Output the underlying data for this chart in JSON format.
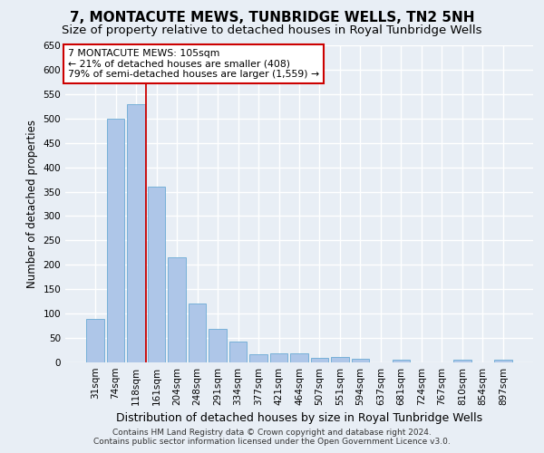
{
  "title": "7, MONTACUTE MEWS, TUNBRIDGE WELLS, TN2 5NH",
  "subtitle": "Size of property relative to detached houses in Royal Tunbridge Wells",
  "xlabel": "Distribution of detached houses by size in Royal Tunbridge Wells",
  "ylabel": "Number of detached properties",
  "footnote1": "Contains HM Land Registry data © Crown copyright and database right 2024.",
  "footnote2": "Contains public sector information licensed under the Open Government Licence v3.0.",
  "categories": [
    "31sqm",
    "74sqm",
    "118sqm",
    "161sqm",
    "204sqm",
    "248sqm",
    "291sqm",
    "334sqm",
    "377sqm",
    "421sqm",
    "464sqm",
    "507sqm",
    "551sqm",
    "594sqm",
    "637sqm",
    "681sqm",
    "724sqm",
    "767sqm",
    "810sqm",
    "854sqm",
    "897sqm"
  ],
  "values": [
    90,
    500,
    530,
    360,
    215,
    120,
    68,
    42,
    16,
    18,
    18,
    10,
    11,
    8,
    0,
    5,
    0,
    0,
    5,
    0,
    5
  ],
  "bar_color": "#aec6e8",
  "bar_edge_color": "#6aaad4",
  "vline_x": 2.5,
  "vline_color": "#cc0000",
  "annotation_text": "7 MONTACUTE MEWS: 105sqm\n← 21% of detached houses are smaller (408)\n79% of semi-detached houses are larger (1,559) →",
  "annotation_border_color": "#cc0000",
  "ylim": [
    0,
    650
  ],
  "yticks": [
    0,
    50,
    100,
    150,
    200,
    250,
    300,
    350,
    400,
    450,
    500,
    550,
    600,
    650
  ],
  "background_color": "#e8eef5",
  "grid_color": "#ffffff",
  "title_fontsize": 11,
  "subtitle_fontsize": 9.5,
  "xlabel_fontsize": 9,
  "ylabel_fontsize": 8.5,
  "tick_fontsize": 7.5,
  "footnote_fontsize": 6.5
}
